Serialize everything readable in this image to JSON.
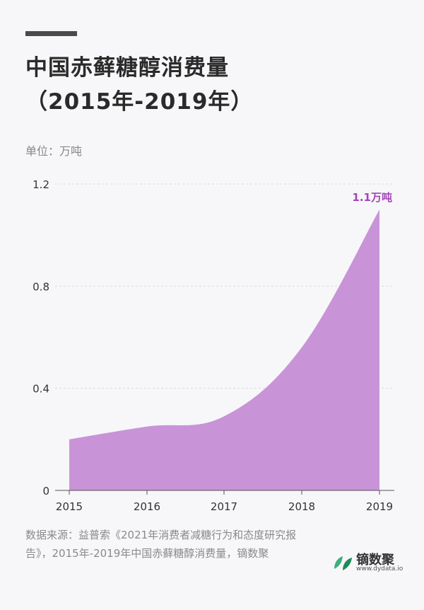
{
  "header": {
    "title_line1": "中国赤藓糖醇消费量",
    "title_line2": "（2015年-2019年）",
    "unit": "单位：万吨"
  },
  "chart_data": {
    "type": "area",
    "x": [
      "2015",
      "2016",
      "2017",
      "2018",
      "2019"
    ],
    "series": [
      {
        "values": [
          0.2,
          0.25,
          0.29,
          0.56,
          1.1
        ],
        "color": "#c993d8"
      }
    ],
    "ylim": [
      0,
      1.2
    ],
    "yticks": [
      "0",
      "0.4",
      "0.8",
      "1.2"
    ],
    "grid": true,
    "annotation": {
      "text": "1.1万吨",
      "color": "#a545b8"
    }
  },
  "footer": {
    "source": "数据来源：益普索《2021年消费者减糖行为和态度研究报告》，2015年-2019年中国赤藓糖醇消费量，镝数聚",
    "brand_name": "镝数聚",
    "brand_url": "www.dydata.io",
    "brand_colors": [
      "#3bb07a",
      "#1f8a5a"
    ]
  }
}
